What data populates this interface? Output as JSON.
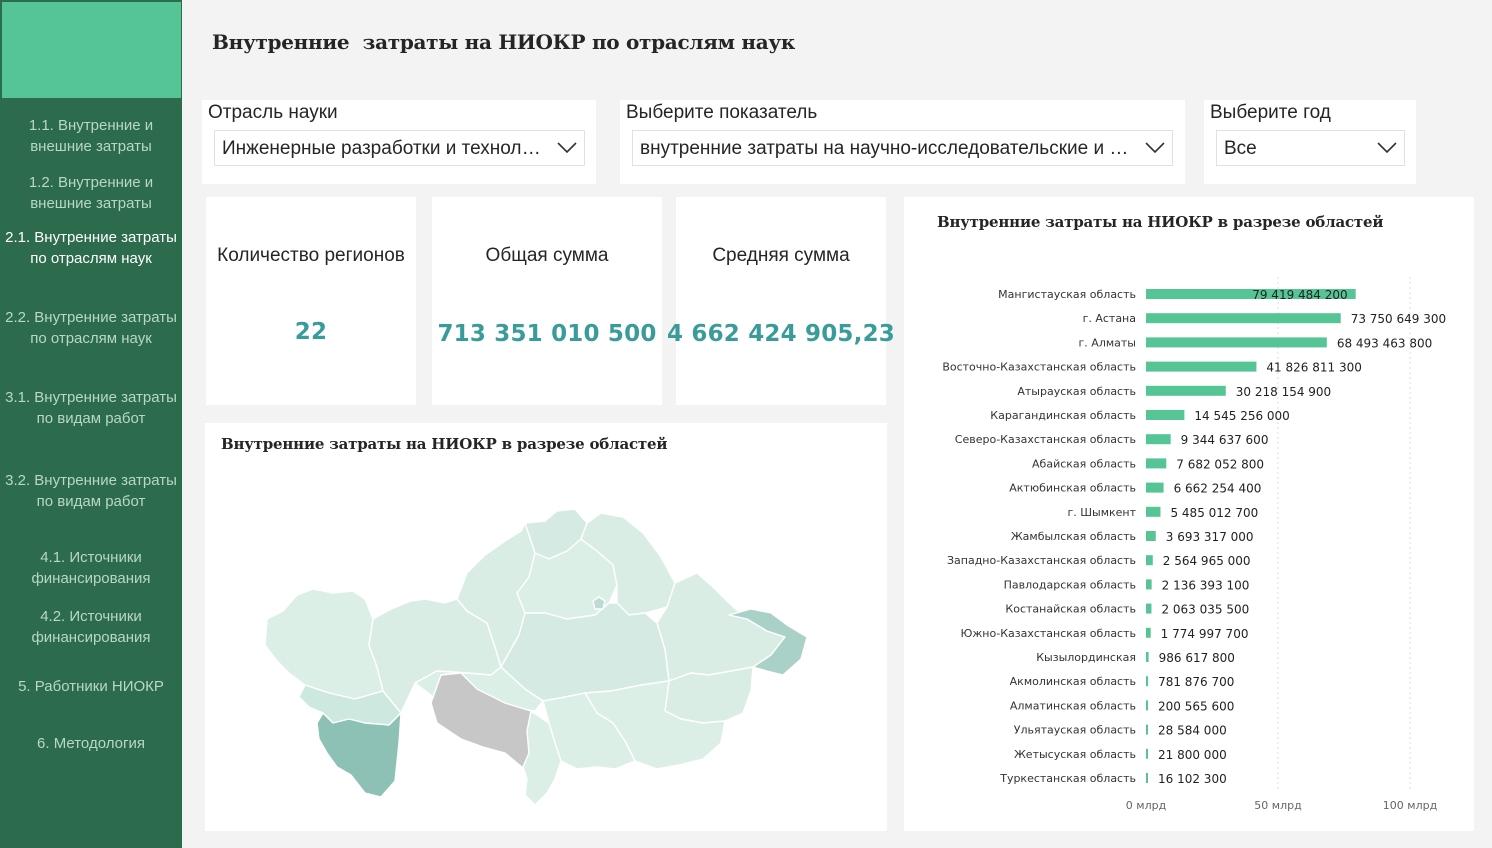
{
  "title": "Внутренние  затраты на НИОКР по отраслям наук",
  "sidebar": {
    "items": [
      {
        "label": "1.1. Внутренние и внешние затраты",
        "active": false
      },
      {
        "label": "1.2. Внутренние и внешние затраты",
        "active": false
      },
      {
        "label": "2.1. Внутренние затраты по отраслям наук",
        "active": true
      },
      {
        "label": "2.2. Внутренние затраты по отраслям наук",
        "active": false
      },
      {
        "label": "3.1. Внутренние затраты по видам работ",
        "active": false
      },
      {
        "label": "3.2. Внутренние затраты по видам работ",
        "active": false
      },
      {
        "label": "4.1. Источники финансирования",
        "active": false
      },
      {
        "label": "4.2. Источники финансирования",
        "active": false
      },
      {
        "label": "5. Работники НИОКР",
        "active": false
      },
      {
        "label": "6. Методология",
        "active": false
      }
    ]
  },
  "filters": {
    "branch": {
      "label": "Отрасль науки",
      "value": "Инженерные разработки и технологии"
    },
    "indicator": {
      "label": "Выберите показатель",
      "value": "внутренние затраты на научно-исследовательские и опытно-конструкторские работы"
    },
    "year": {
      "label": "Выберите год",
      "value": "Все"
    }
  },
  "kpis": {
    "regions": {
      "title": "Количество регионов",
      "value": "22"
    },
    "total": {
      "title": "Общая сумма",
      "value": "713 351 010 500"
    },
    "average": {
      "title": "Средняя сумма",
      "value": "4 662 424 905,23"
    }
  },
  "map": {
    "title": "Внутренние затраты на НИОКР в разрезе областей"
  },
  "colors": {
    "bar": "#55c595",
    "kpi": "#3a9b9b",
    "sidebar": "#2c6b4b",
    "sidebar_logo": "#55c595"
  },
  "chart_data": {
    "type": "bar",
    "orientation": "horizontal",
    "title": "Внутренние затраты на НИОКР в разрезе областей",
    "categories": [
      "Мангистауская область",
      "г. Астана",
      "г. Алматы",
      "Восточно-Казахстанская область",
      "Атырауская область",
      "Карагандинская область",
      "Северо-Казахстанская область",
      "Абайская область",
      "Актюбинская область",
      "г. Шымкент",
      "Жамбылская область",
      "Западно-Казахстанская область",
      "Павлодарская область",
      "Костанайская область",
      "Южно-Казахстанская область",
      "Кызылординская",
      "Акмолинская область",
      "Алматинская область",
      "Ульятауская область",
      "Жетысуская область",
      "Туркестанская область"
    ],
    "values": [
      79419484200,
      73750649300,
      68493463800,
      41826811300,
      30218154900,
      14545256000,
      9344637600,
      7682052800,
      6662254400,
      5485012700,
      3693317000,
      2564965000,
      2136393100,
      2063035500,
      1774997700,
      986617800,
      781876700,
      200565600,
      28584000,
      21800000,
      16102300
    ],
    "value_labels": [
      "79 419 484 200",
      "73 750 649 300",
      "68 493 463 800",
      "41 826 811 300",
      "30 218 154 900",
      "14 545 256 000",
      "9 344 637 600",
      "7 682 052 800",
      "6 662 254 400",
      "5 485 012 700",
      "3 693 317 000",
      "2 564 965 000",
      "2 136 393 100",
      "2 063 035 500",
      "1 774 997 700",
      "986 617 800",
      "781 876 700",
      "200 565 600",
      "28 584 000",
      "21 800 000",
      "16 102 300"
    ],
    "xlim": [
      0,
      100000000000
    ],
    "x_ticks": [
      0,
      50000000000,
      100000000000
    ],
    "x_tick_labels": [
      "0 млрд",
      "50 млрд",
      "100 млрд"
    ],
    "grid": true
  }
}
